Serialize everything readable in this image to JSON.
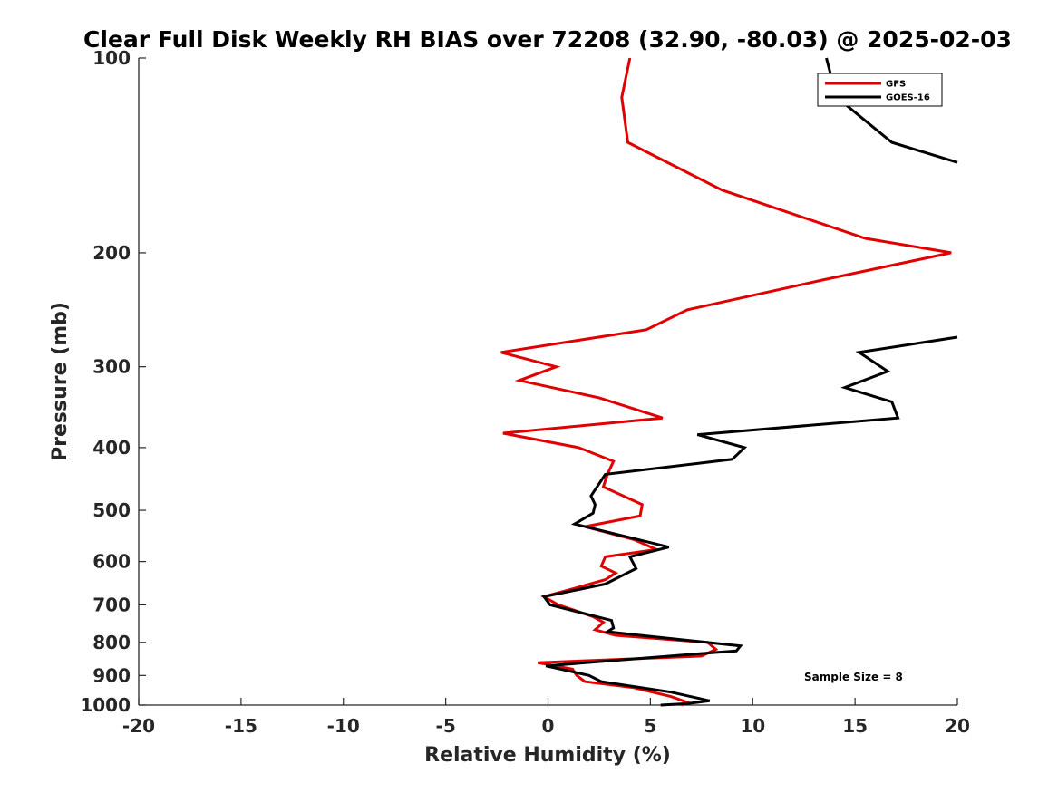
{
  "chart_data": {
    "type": "line",
    "title": "Clear Full Disk Weekly RH BIAS over 72208 (32.90, -80.03) @ 2025-02-03",
    "xlabel": "Relative Humidity (%)",
    "ylabel": "Pressure (mb)",
    "xlim": [
      -20,
      20
    ],
    "ylim": [
      1000,
      100
    ],
    "yscale": "log",
    "y_reversed": true,
    "xticks": [
      "-20",
      "-15",
      "-10",
      "-5",
      "0",
      "5",
      "10",
      "15",
      "20"
    ],
    "yticks": [
      "100",
      "200",
      "300",
      "400",
      "500",
      "600",
      "700",
      "800",
      "900",
      "1000"
    ],
    "grid": false,
    "legend_position": "top-right",
    "annotation": "Sample Size = 8",
    "series": [
      {
        "name": "GFS",
        "color": "#e00000",
        "points": [
          [
            4.0,
            100
          ],
          [
            3.6,
            115
          ],
          [
            3.9,
            135
          ],
          [
            8.5,
            160
          ],
          [
            15.5,
            190
          ],
          [
            19.7,
            200
          ],
          [
            13.5,
            220
          ],
          [
            6.8,
            245
          ],
          [
            4.8,
            263
          ],
          [
            -2.3,
            285
          ],
          [
            0.4,
            300
          ],
          [
            -1.4,
            315
          ],
          [
            2.5,
            335
          ],
          [
            5.6,
            360
          ],
          [
            -2.2,
            380
          ],
          [
            1.5,
            400
          ],
          [
            3.2,
            420
          ],
          [
            2.9,
            440
          ],
          [
            2.7,
            460
          ],
          [
            4.6,
            490
          ],
          [
            4.5,
            510
          ],
          [
            1.8,
            530
          ],
          [
            4.2,
            555
          ],
          [
            5.3,
            575
          ],
          [
            2.8,
            590
          ],
          [
            2.6,
            610
          ],
          [
            3.3,
            625
          ],
          [
            2.8,
            640
          ],
          [
            1.3,
            660
          ],
          [
            -0.2,
            680
          ],
          [
            0.5,
            700
          ],
          [
            2.2,
            730
          ],
          [
            2.7,
            745
          ],
          [
            2.3,
            765
          ],
          [
            3.3,
            780
          ],
          [
            7.8,
            800
          ],
          [
            8.2,
            820
          ],
          [
            7.5,
            840
          ],
          [
            -0.5,
            860
          ],
          [
            1.2,
            880
          ],
          [
            1.4,
            900
          ],
          [
            1.8,
            920
          ],
          [
            4.2,
            940
          ],
          [
            6.0,
            970
          ],
          [
            6.8,
            990
          ],
          [
            6.5,
            1000
          ]
        ]
      },
      {
        "name": "GOES-16",
        "color": "#000000",
        "points": [
          [
            13.6,
            100
          ],
          [
            14.1,
            115
          ],
          [
            16.8,
            135
          ],
          [
            20.0,
            145
          ],
          [
            null,
            null
          ],
          [
            20.0,
            270
          ],
          [
            15.2,
            285
          ],
          [
            16.6,
            305
          ],
          [
            14.5,
            323
          ],
          [
            16.8,
            340
          ],
          [
            17.1,
            360
          ],
          [
            7.3,
            382
          ],
          [
            9.6,
            400
          ],
          [
            9.0,
            417
          ],
          [
            2.8,
            440
          ],
          [
            2.1,
            475
          ],
          [
            2.3,
            490
          ],
          [
            2.2,
            505
          ],
          [
            1.3,
            525
          ],
          [
            5.9,
            570
          ],
          [
            4.0,
            590
          ],
          [
            4.3,
            615
          ],
          [
            2.8,
            650
          ],
          [
            -0.2,
            680
          ],
          [
            0.1,
            700
          ],
          [
            3.1,
            740
          ],
          [
            3.2,
            760
          ],
          [
            2.9,
            770
          ],
          [
            4.5,
            780
          ],
          [
            9.4,
            810
          ],
          [
            9.2,
            825
          ],
          [
            8.0,
            830
          ],
          [
            -0.1,
            870
          ],
          [
            2.0,
            900
          ],
          [
            2.6,
            920
          ],
          [
            6.0,
            955
          ],
          [
            7.9,
            985
          ],
          [
            6.8,
            995
          ],
          [
            5.5,
            1000
          ]
        ]
      }
    ]
  }
}
